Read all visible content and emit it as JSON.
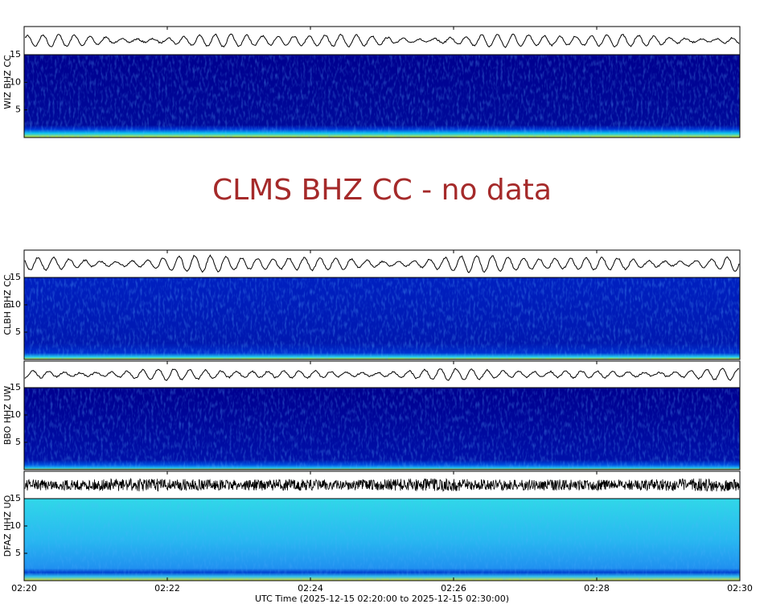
{
  "panels": [
    {
      "station": "WIZ BHZ CC",
      "ylim": [
        0,
        15
      ],
      "yticks": [
        5,
        10,
        15
      ]
    },
    {
      "station": "CLBH BHZ CC",
      "ylim": [
        0,
        15
      ],
      "yticks": [
        5,
        10,
        15
      ]
    },
    {
      "station": "BBO HHZ UW",
      "ylim": [
        0,
        15
      ],
      "yticks": [
        5,
        10,
        15
      ]
    },
    {
      "station": "DFAZ HHZ UO",
      "ylim": [
        0,
        15
      ],
      "yticks": [
        5,
        10,
        15
      ]
    }
  ],
  "no_data_message": "CLMS BHZ CC - no data",
  "x_axis": {
    "ticks": [
      "02:20",
      "02:22",
      "02:24",
      "02:26",
      "02:28",
      "02:30"
    ],
    "label": "UTC Time (2025-12-15 02:20:00 to 2025-12-15 02:30:00)"
  }
}
